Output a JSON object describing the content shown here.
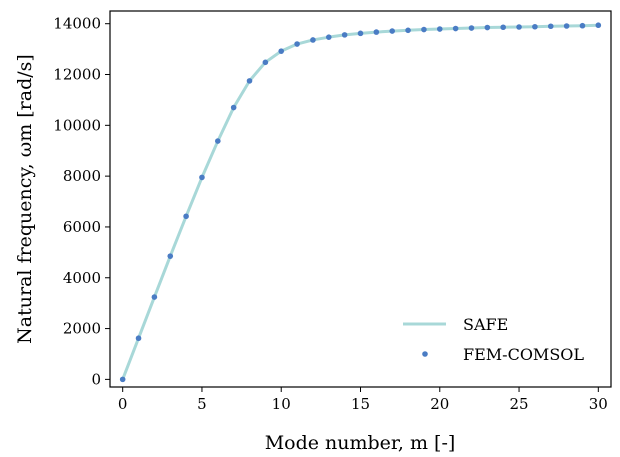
{
  "chart_data": {
    "type": "line",
    "xlabel": "Mode number, m [-]",
    "ylabel": "Natural frequency, ωm [rad/s]",
    "xlim": [
      -0.8,
      30.8
    ],
    "ylim": [
      -300,
      14500
    ],
    "xticks": [
      0,
      5,
      10,
      15,
      20,
      25,
      30
    ],
    "yticks": [
      0,
      2000,
      4000,
      6000,
      8000,
      10000,
      12000,
      14000
    ],
    "grid": false,
    "legend_position": "lower-right",
    "series": [
      {
        "name": "SAFE",
        "style": "line",
        "color": "#a8d8d8",
        "x": [
          0,
          1,
          2,
          3,
          4,
          5,
          6,
          7,
          8,
          9,
          10,
          11,
          12,
          13,
          14,
          15,
          16,
          17,
          18,
          19,
          20,
          21,
          22,
          23,
          24,
          25,
          26,
          27,
          28,
          29,
          30
        ],
        "values": [
          0,
          1620,
          3240,
          4850,
          6420,
          7950,
          9380,
          10700,
          11750,
          12480,
          12920,
          13200,
          13360,
          13470,
          13560,
          13620,
          13670,
          13710,
          13740,
          13770,
          13790,
          13810,
          13830,
          13850,
          13860,
          13870,
          13880,
          13900,
          13910,
          13920,
          13940
        ]
      },
      {
        "name": "FEM-COMSOL",
        "style": "markers",
        "color": "#4a7cc4",
        "x": [
          0,
          1,
          2,
          3,
          4,
          5,
          6,
          7,
          8,
          9,
          10,
          11,
          12,
          13,
          14,
          15,
          16,
          17,
          18,
          19,
          20,
          21,
          22,
          23,
          24,
          25,
          26,
          27,
          28,
          29,
          30
        ],
        "values": [
          0,
          1620,
          3240,
          4850,
          6420,
          7950,
          9380,
          10700,
          11750,
          12480,
          12920,
          13200,
          13360,
          13470,
          13560,
          13620,
          13670,
          13710,
          13740,
          13770,
          13790,
          13810,
          13830,
          13850,
          13860,
          13870,
          13880,
          13900,
          13910,
          13920,
          13940
        ]
      }
    ]
  }
}
